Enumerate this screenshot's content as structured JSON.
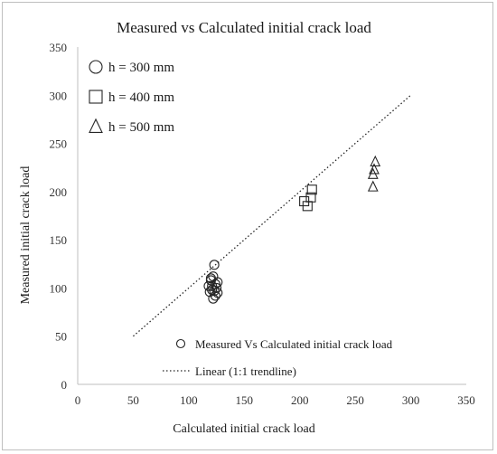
{
  "chart_data": {
    "type": "scatter",
    "title": "Measured vs Calculated  initial  crack load",
    "xlabel": "Calculated initial crack load",
    "ylabel": "Measured initial crack load",
    "xlim": [
      0,
      350
    ],
    "ylim": [
      0,
      350
    ],
    "x_ticks": [
      0,
      50,
      100,
      150,
      200,
      250,
      300,
      350
    ],
    "y_ticks": [
      0,
      50,
      100,
      150,
      200,
      250,
      300,
      350
    ],
    "grid": false,
    "series": [
      {
        "name": "h = 300 mm",
        "marker": "circle",
        "points": [
          [
            120,
            110
          ],
          [
            122,
            112
          ],
          [
            124,
            104
          ],
          [
            125,
            100
          ],
          [
            126,
            95
          ],
          [
            121,
            98
          ],
          [
            123,
            124
          ],
          [
            118,
            102
          ],
          [
            119,
            96
          ],
          [
            122,
            89
          ],
          [
            124,
            92
          ],
          [
            120,
            108
          ],
          [
            126,
            106
          ],
          [
            121,
            102
          ],
          [
            123,
            97
          ]
        ]
      },
      {
        "name": "h = 400 mm",
        "marker": "square",
        "points": [
          [
            204,
            190
          ],
          [
            207,
            185
          ],
          [
            210,
            194
          ],
          [
            211,
            202
          ]
        ]
      },
      {
        "name": "h = 500 mm",
        "marker": "triangle",
        "points": [
          [
            266,
            205
          ],
          [
            266,
            218
          ],
          [
            267,
            223
          ],
          [
            268,
            231
          ]
        ]
      }
    ],
    "trendline": {
      "name": "Linear (1:1 trendline)",
      "points": [
        [
          50,
          50
        ],
        [
          300,
          300
        ]
      ]
    },
    "legend": {
      "markers": [
        "h = 300 mm",
        "h = 400 mm",
        "h = 500 mm"
      ],
      "marker_legend_position": "top-left",
      "bottom_entries": [
        "Measured Vs Calculated initial crack load",
        "Linear (1:1 trendline)"
      ]
    },
    "colors": {
      "marker": "#262626",
      "trendline": "#262626",
      "axis": "#bfbfbf"
    }
  }
}
